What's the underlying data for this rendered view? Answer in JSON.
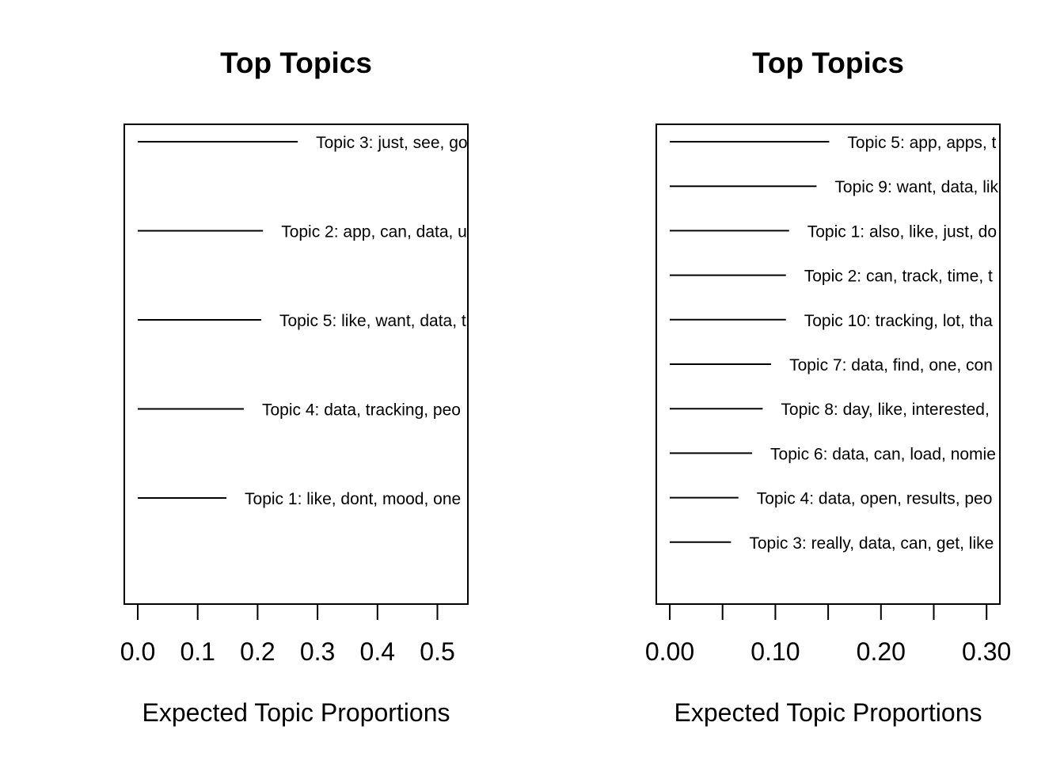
{
  "chart_data": [
    {
      "type": "bar",
      "title": "Top Topics",
      "xlabel": "Expected Topic Proportions",
      "xlim": [
        0,
        0.55
      ],
      "xticks": [
        0.0,
        0.1,
        0.2,
        0.3,
        0.4,
        0.5
      ],
      "xtick_labels": [
        "0.0",
        "0.1",
        "0.2",
        "0.3",
        "0.4",
        "0.5"
      ],
      "topics": [
        {
          "label": "Topic 3: just, see, go",
          "value": 0.267
        },
        {
          "label": "Topic 2: app, can, data, u",
          "value": 0.209
        },
        {
          "label": "Topic 5: like, want, data, t",
          "value": 0.206
        },
        {
          "label": "Topic 4: data, tracking, peo",
          "value": 0.177
        },
        {
          "label": "Topic 1: like, dont, mood, one",
          "value": 0.148
        }
      ]
    },
    {
      "type": "bar",
      "title": "Top Topics",
      "xlabel": "Expected Topic Proportions",
      "xlim": [
        0,
        0.31
      ],
      "xticks": [
        0.0,
        0.05,
        0.1,
        0.15,
        0.2,
        0.25,
        0.3
      ],
      "xtick_labels": [
        "0.00",
        "",
        "0.10",
        "",
        "0.20",
        "",
        "0.30"
      ],
      "topics": [
        {
          "label": "Topic 5: app, apps, t",
          "value": 0.151
        },
        {
          "label": "Topic 9: want, data, lik",
          "value": 0.139
        },
        {
          "label": "Topic 1: also, like, just, do",
          "value": 0.113
        },
        {
          "label": "Topic 2: can, track, time, t",
          "value": 0.11
        },
        {
          "label": "Topic 10: tracking, lot, tha",
          "value": 0.11
        },
        {
          "label": "Topic 7: data, find, one, con",
          "value": 0.096
        },
        {
          "label": "Topic 8: day, like, interested,",
          "value": 0.088
        },
        {
          "label": "Topic 6: data, can, load, nomie",
          "value": 0.078
        },
        {
          "label": "Topic 4: data, open, results, peo",
          "value": 0.065
        },
        {
          "label": "Topic 3: really, data, can, get, like",
          "value": 0.058
        }
      ]
    }
  ]
}
